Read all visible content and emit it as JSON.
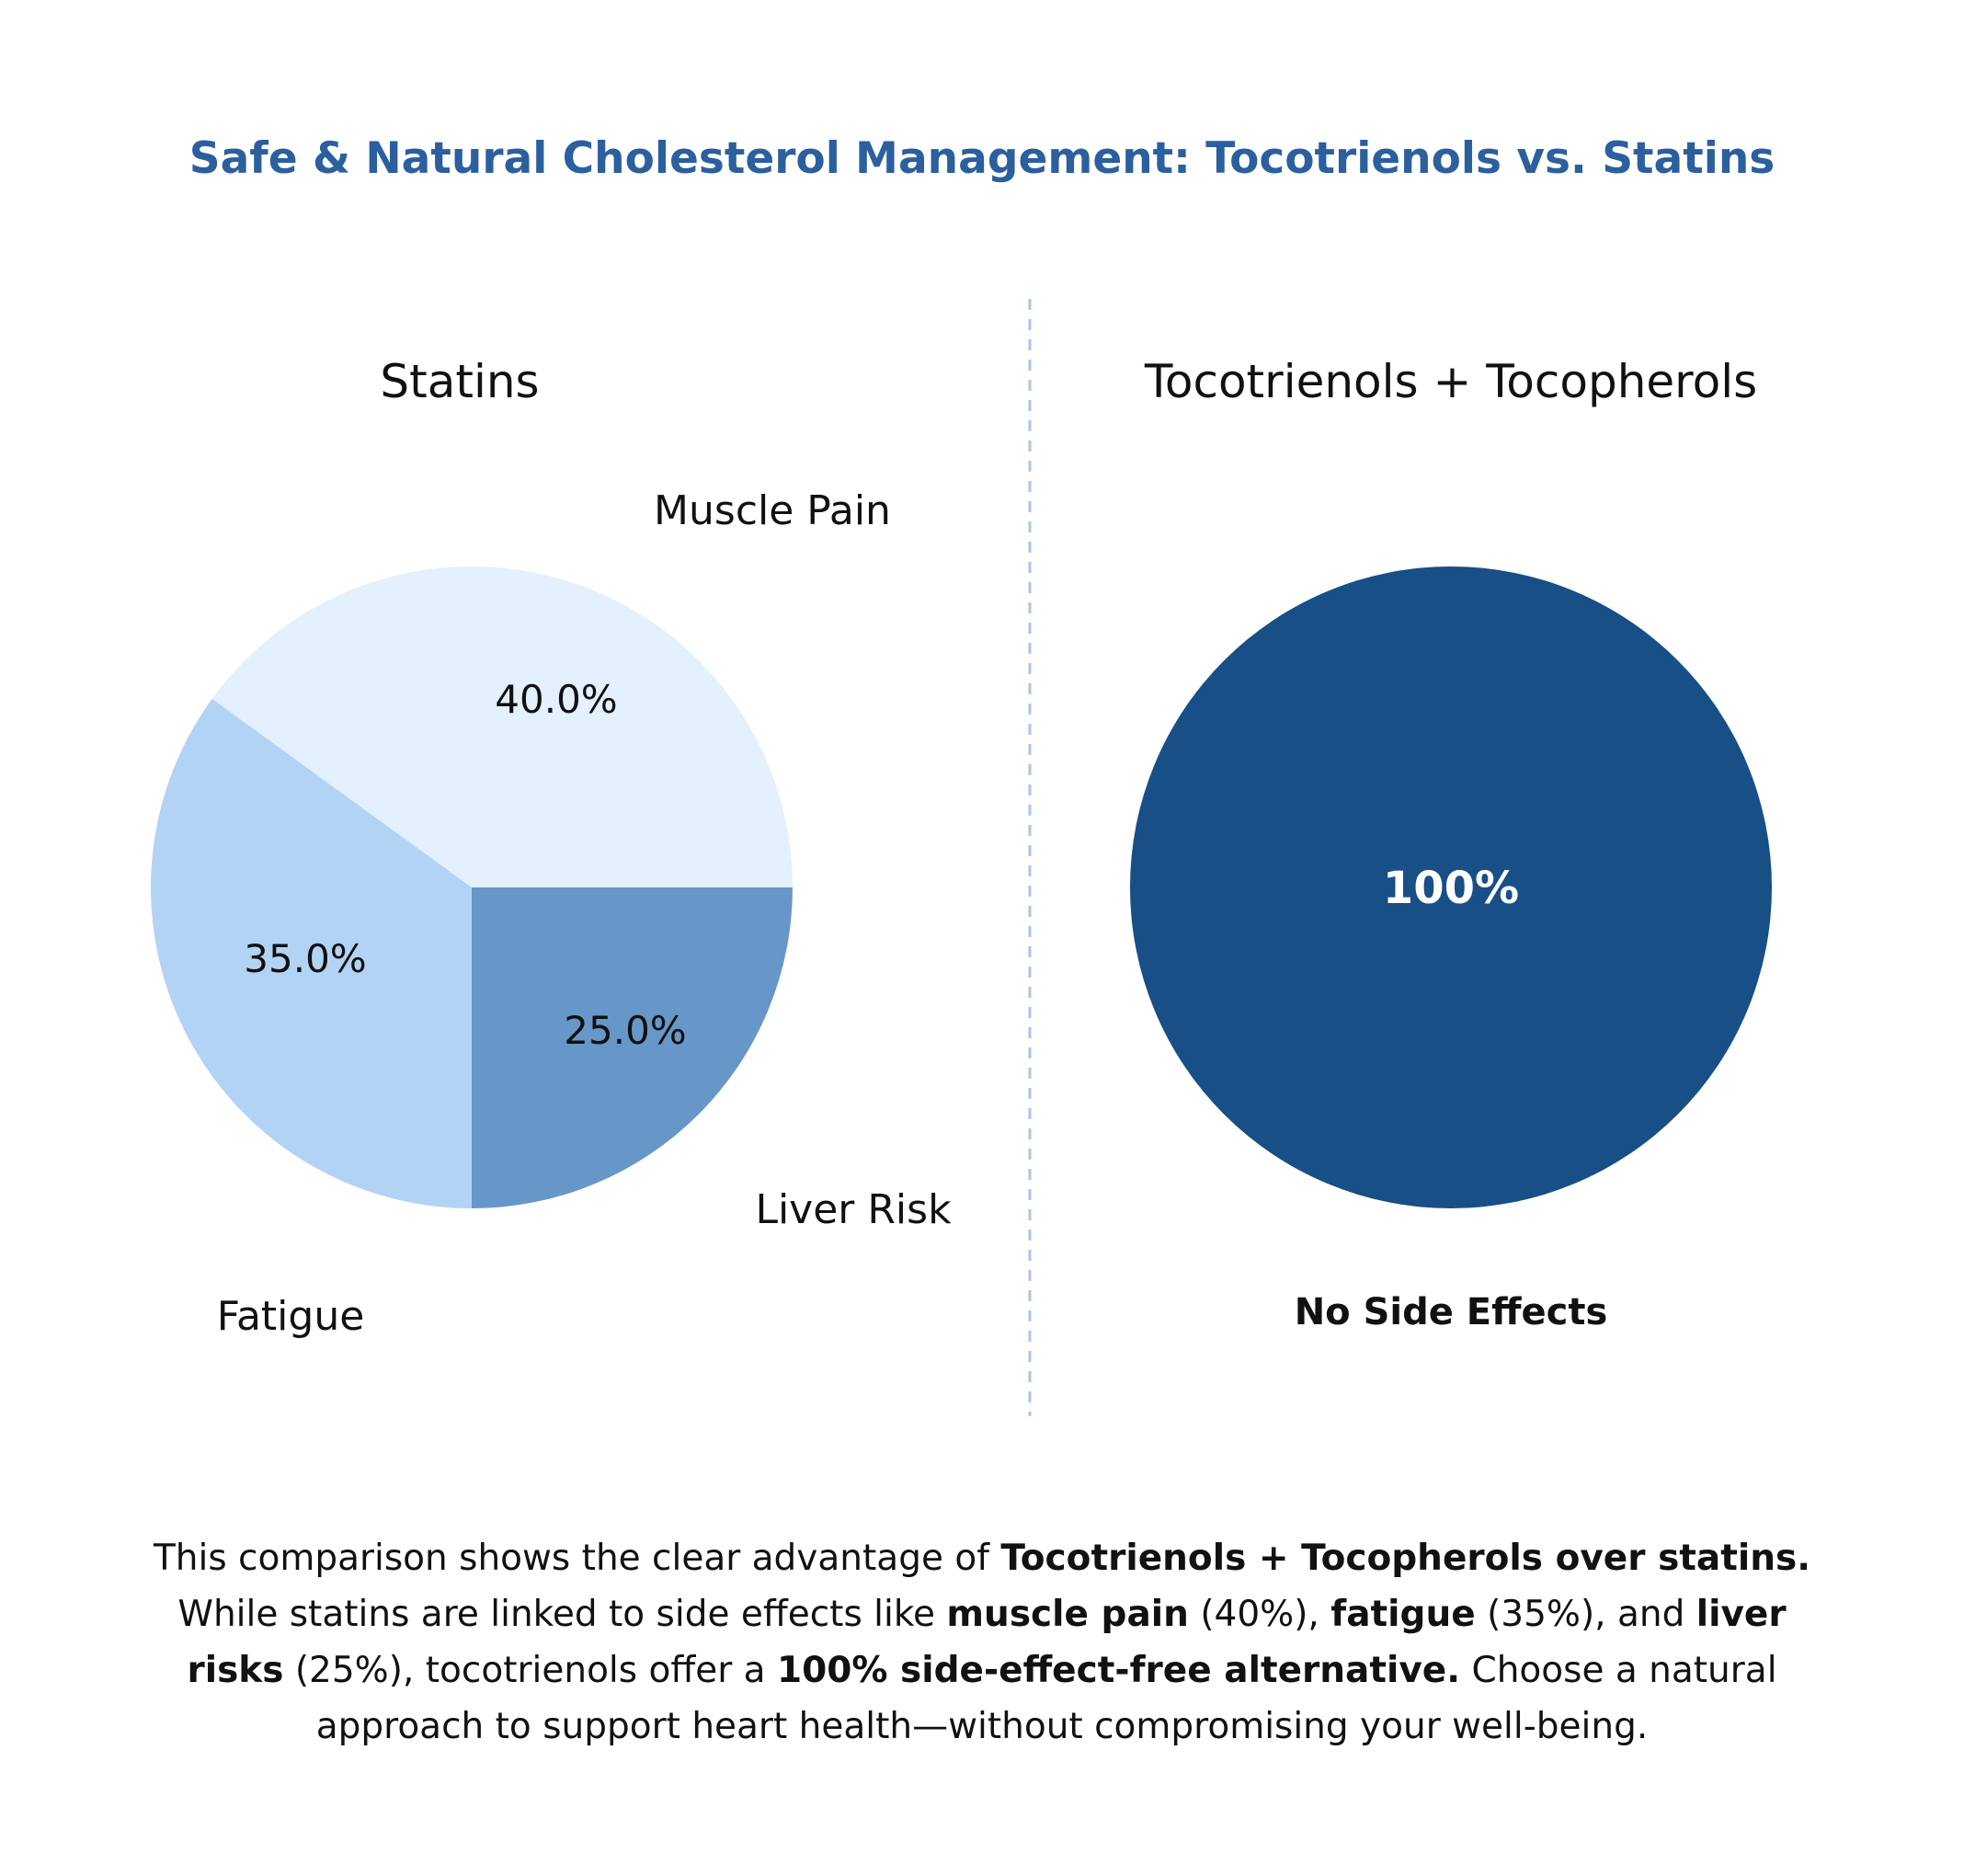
{
  "title": "Safe & Natural Cholesterol Management: Tocotrienols vs. Statins",
  "colors": {
    "title": "#2b5f9e",
    "divider": "#a9c6e8",
    "muscle_pain": "#e3f0fd",
    "fatigue": "#b3d3f5",
    "liver_risk": "#6797c8",
    "no_side_effects": "#174f86"
  },
  "chart_data": [
    {
      "type": "pie",
      "title": "Statins",
      "slices": [
        {
          "label": "Muscle Pain",
          "value": 40.0,
          "value_label": "40.0%",
          "color": "#e3f0fd"
        },
        {
          "label": "Fatigue",
          "value": 35.0,
          "value_label": "35.0%",
          "color": "#b3d3f5"
        },
        {
          "label": "Liver Risk",
          "value": 25.0,
          "value_label": "25.0%",
          "color": "#6797c8"
        }
      ]
    },
    {
      "type": "pie",
      "title": "Tocotrienols + Tocopherols",
      "slices": [
        {
          "label": "No Side Effects",
          "value": 100,
          "value_label": "100%",
          "color": "#174f86"
        }
      ]
    }
  ],
  "caption": {
    "parts": [
      {
        "text": "This comparison shows the clear advantage of ",
        "bold": false
      },
      {
        "text": "Tocotrienols + Tocopherols over statins.",
        "bold": true
      },
      {
        "text": " While statins are linked to side effects like ",
        "bold": false
      },
      {
        "text": "muscle pain",
        "bold": true
      },
      {
        "text": " (40%), ",
        "bold": false
      },
      {
        "text": "fatigue",
        "bold": true
      },
      {
        "text": " (35%), and ",
        "bold": false
      },
      {
        "text": "liver risks",
        "bold": true
      },
      {
        "text": " (25%), tocotrienols offer a ",
        "bold": false
      },
      {
        "text": "100% side-effect-free alternative.",
        "bold": true
      },
      {
        "text": " Choose a natural approach to support heart health—without compromising your well-being.",
        "bold": false
      }
    ]
  }
}
